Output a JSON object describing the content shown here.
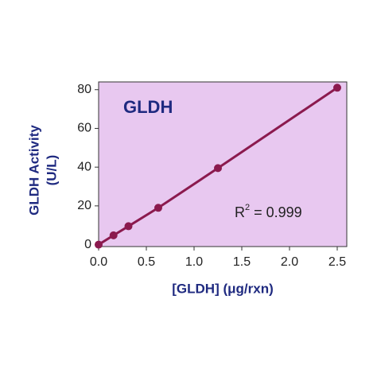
{
  "chart_data": {
    "type": "line",
    "title": "GLDH",
    "x_label": "[GLDH] (μg/rxn)",
    "y_label": [
      "GLDH Activity",
      "(U/L)"
    ],
    "annotation": {
      "base": "R",
      "superscript": "2",
      "text": "= 0.999"
    },
    "x": [
      0,
      0.156,
      0.3125,
      0.625,
      1.25,
      2.5
    ],
    "series": [
      {
        "color": "#8b1a4e",
        "values": [
          0,
          4.8,
          9.5,
          19,
          39.5,
          81
        ]
      }
    ],
    "xlim": [
      0,
      2.6
    ],
    "ylim": [
      -1,
      84
    ],
    "xticks": [
      {
        "value": 0,
        "label": "0.0"
      },
      0.5,
      {
        "value": 1,
        "label": "1.0"
      },
      1.5,
      {
        "value": 2,
        "label": "2.0"
      },
      2.5
    ],
    "yticks": [
      0,
      20,
      40,
      60,
      80
    ],
    "plot_background": "#e8c8f0"
  }
}
